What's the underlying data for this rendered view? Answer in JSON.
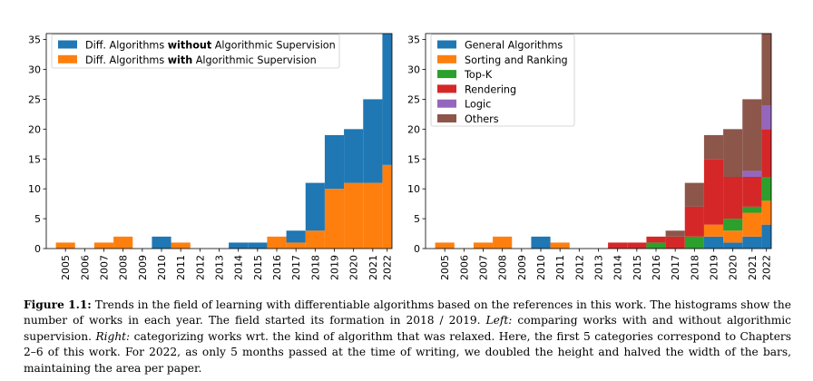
{
  "colors": {
    "blue": "#1f77b4",
    "orange": "#ff7f0e",
    "green": "#2ca02c",
    "red": "#d62728",
    "purple": "#9467bd",
    "brown": "#8c564b"
  },
  "chart_data": [
    {
      "type": "bar",
      "stacked": true,
      "title": "",
      "xlabel": "",
      "ylabel": "",
      "ylim": [
        0,
        36
      ],
      "yticks": [
        0,
        5,
        10,
        15,
        20,
        25,
        30,
        35
      ],
      "categories": [
        "2005",
        "2006",
        "2007",
        "2008",
        "2009",
        "2010",
        "2011",
        "2012",
        "2013",
        "2014",
        "2015",
        "2016",
        "2017",
        "2018",
        "2019",
        "2020",
        "2021",
        "2022"
      ],
      "legend_position": "top-left",
      "legend": [
        {
          "pre": "Diff. Algorithms ",
          "bold": "without",
          "post": " Algorithmic Supervision"
        },
        {
          "pre": "Diff. Algorithms ",
          "bold": "with",
          "post": " Algorithmic Supervision"
        }
      ],
      "series": [
        {
          "name": "with",
          "color": "orange",
          "values": [
            1,
            0,
            1,
            2,
            0,
            0,
            1,
            0,
            0,
            0,
            0,
            2,
            1,
            3,
            10,
            11,
            11,
            14
          ]
        },
        {
          "name": "without",
          "color": "blue",
          "values": [
            0,
            0,
            0,
            0,
            0,
            2,
            0,
            0,
            0,
            1,
            1,
            0,
            2,
            8,
            9,
            9,
            14,
            22
          ]
        }
      ],
      "note": "2022 bar drawn at half width"
    },
    {
      "type": "bar",
      "stacked": true,
      "title": "",
      "xlabel": "",
      "ylabel": "",
      "ylim": [
        0,
        36
      ],
      "yticks": [
        0,
        5,
        10,
        15,
        20,
        25,
        30,
        35
      ],
      "categories": [
        "2005",
        "2006",
        "2007",
        "2008",
        "2009",
        "2010",
        "2011",
        "2012",
        "2013",
        "2014",
        "2015",
        "2016",
        "2017",
        "2018",
        "2019",
        "2020",
        "2021",
        "2022"
      ],
      "legend_position": "top-left",
      "legend": [
        "General Algorithms",
        "Sorting and Ranking",
        "Top-K",
        "Rendering",
        "Logic",
        "Others"
      ],
      "series": [
        {
          "name": "General Algorithms",
          "color": "blue",
          "values": [
            0,
            0,
            0,
            0,
            0,
            2,
            0,
            0,
            0,
            0,
            0,
            0,
            0,
            0,
            2,
            1,
            2,
            4
          ]
        },
        {
          "name": "Sorting and Ranking",
          "color": "orange",
          "values": [
            1,
            0,
            1,
            2,
            0,
            0,
            1,
            0,
            0,
            0,
            0,
            0,
            0,
            0,
            2,
            2,
            4,
            4
          ]
        },
        {
          "name": "Top-K",
          "color": "green",
          "values": [
            0,
            0,
            0,
            0,
            0,
            0,
            0,
            0,
            0,
            0,
            0,
            1,
            0,
            2,
            0,
            2,
            1,
            4
          ]
        },
        {
          "name": "Rendering",
          "color": "red",
          "values": [
            0,
            0,
            0,
            0,
            0,
            0,
            0,
            0,
            0,
            1,
            1,
            1,
            2,
            5,
            11,
            7,
            5,
            8
          ]
        },
        {
          "name": "Logic",
          "color": "purple",
          "values": [
            0,
            0,
            0,
            0,
            0,
            0,
            0,
            0,
            0,
            0,
            0,
            0,
            0,
            0,
            0,
            0,
            1,
            4
          ]
        },
        {
          "name": "Others",
          "color": "brown",
          "values": [
            0,
            0,
            0,
            0,
            0,
            0,
            0,
            0,
            0,
            0,
            0,
            0,
            1,
            4,
            4,
            8,
            12,
            12
          ]
        }
      ],
      "note": "2022 bar drawn at half width"
    }
  ],
  "caption": {
    "label": "Figure 1.1:",
    "part1": " Trends in the field of learning with differentiable algorithms based on the references in this work. The histograms show the number of works in each year. The field started its formation in 2018 / 2019. ",
    "left_label": "Left:",
    "part2": " comparing works with and without algorithmic supervision. ",
    "right_label": "Right:",
    "part3": " categorizing works wrt. the kind of algorithm that was relaxed. Here, the first 5 categories correspond to Chapters 2–6 of this work. For 2022, as only 5 months passed at the time of writing, we doubled the height and halved the width of the bars, maintaining the area per paper."
  }
}
